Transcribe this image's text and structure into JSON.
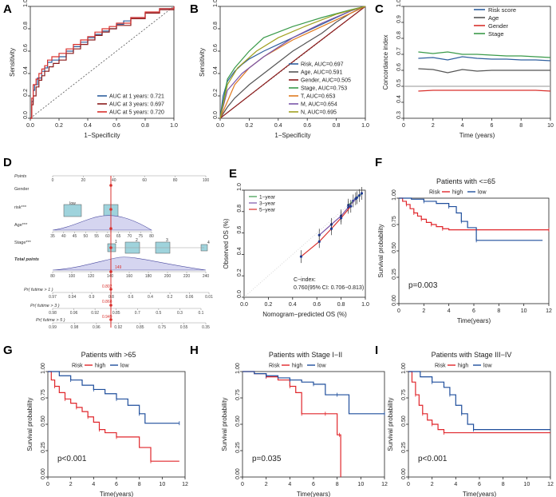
{
  "panel_letters": [
    "A",
    "B",
    "C",
    "D",
    "E",
    "F",
    "G",
    "H",
    "I"
  ],
  "colors": {
    "blue": "#2f5f9e",
    "red": "#d9302c",
    "darkred": "#8b1a1a",
    "green": "#3a9a4a",
    "gray": "#555555",
    "orange": "#e07b1f",
    "purple": "#7a55a8",
    "olive": "#a0a020",
    "navy": "#1f3a93",
    "km_red": "#e0262b",
    "km_blue": "#1f4e9c"
  },
  "chart_data": [
    {
      "panel": "A",
      "type": "line",
      "title": "",
      "xlabel": "1−Specificity",
      "ylabel": "Sensitivity",
      "xlim": [
        0,
        1
      ],
      "ylim": [
        0,
        1
      ],
      "xticks": [
        "0.0",
        "0.2",
        "0.4",
        "0.6",
        "0.8",
        "1.0"
      ],
      "yticks": [
        "0.0",
        "0.2",
        "0.4",
        "0.6",
        "0.8",
        "1.0"
      ],
      "legend": "bottom-right",
      "series": [
        {
          "name": "AUC at 1 years: 0.721",
          "color": "#2f5f9e",
          "x": [
            0,
            0.01,
            0.02,
            0.03,
            0.05,
            0.08,
            0.1,
            0.12,
            0.15,
            0.2,
            0.25,
            0.3,
            0.35,
            0.4,
            0.45,
            0.5,
            0.55,
            0.6,
            0.65,
            0.7,
            0.8,
            0.9,
            1.0
          ],
          "y": [
            0,
            0.15,
            0.25,
            0.3,
            0.36,
            0.42,
            0.45,
            0.5,
            0.52,
            0.55,
            0.6,
            0.64,
            0.68,
            0.72,
            0.75,
            0.78,
            0.8,
            0.84,
            0.87,
            0.9,
            0.94,
            0.98,
            1.0
          ]
        },
        {
          "name": "AUC at 3 years: 0.697",
          "color": "#8b1a1a",
          "x": [
            0,
            0.01,
            0.02,
            0.04,
            0.06,
            0.08,
            0.1,
            0.13,
            0.16,
            0.2,
            0.25,
            0.3,
            0.35,
            0.4,
            0.45,
            0.5,
            0.55,
            0.6,
            0.7,
            0.8,
            0.9,
            1.0
          ],
          "y": [
            0,
            0.12,
            0.2,
            0.28,
            0.34,
            0.38,
            0.42,
            0.46,
            0.49,
            0.52,
            0.58,
            0.62,
            0.66,
            0.7,
            0.74,
            0.77,
            0.8,
            0.83,
            0.89,
            0.94,
            0.97,
            1.0
          ]
        },
        {
          "name": "AUC at 5 years: 0.720",
          "color": "#d9302c",
          "x": [
            0,
            0.01,
            0.02,
            0.04,
            0.06,
            0.08,
            0.1,
            0.12,
            0.15,
            0.2,
            0.25,
            0.3,
            0.35,
            0.4,
            0.45,
            0.5,
            0.55,
            0.6,
            0.7,
            0.8,
            0.9,
            1.0
          ],
          "y": [
            0,
            0.18,
            0.3,
            0.35,
            0.4,
            0.44,
            0.47,
            0.52,
            0.55,
            0.58,
            0.62,
            0.66,
            0.7,
            0.73,
            0.77,
            0.8,
            0.82,
            0.85,
            0.9,
            0.95,
            0.98,
            1.0
          ]
        }
      ]
    },
    {
      "panel": "B",
      "type": "line",
      "title": "",
      "xlabel": "1−Specificity",
      "ylabel": "Sensitivity",
      "xlim": [
        0,
        1
      ],
      "ylim": [
        0,
        1
      ],
      "xticks": [
        "0.0",
        "0.2",
        "0.4",
        "0.6",
        "0.8",
        "1.0"
      ],
      "yticks": [
        "0.0",
        "0.2",
        "0.4",
        "0.6",
        "0.8",
        "1.0"
      ],
      "legend": "bottom-right",
      "series": [
        {
          "name": "Risk, AUC=0.697",
          "color": "#2f5f9e",
          "x": [
            0,
            0.02,
            0.05,
            0.1,
            0.15,
            0.2,
            0.3,
            0.4,
            0.5,
            0.6,
            0.7,
            0.8,
            0.9,
            1.0
          ],
          "y": [
            0,
            0.2,
            0.33,
            0.42,
            0.48,
            0.53,
            0.6,
            0.66,
            0.72,
            0.78,
            0.84,
            0.9,
            0.96,
            1.0
          ]
        },
        {
          "name": "Age, AUC=0.591",
          "color": "#555555",
          "x": [
            0,
            0.05,
            0.1,
            0.15,
            0.2,
            0.3,
            0.4,
            0.5,
            0.6,
            0.7,
            0.8,
            0.9,
            1.0
          ],
          "y": [
            0,
            0.1,
            0.18,
            0.24,
            0.3,
            0.4,
            0.5,
            0.6,
            0.68,
            0.76,
            0.86,
            0.94,
            1.0
          ]
        },
        {
          "name": "Gender, AUC=0.505",
          "color": "#8b1a1a",
          "x": [
            0,
            0.5,
            1.0
          ],
          "y": [
            0,
            0.505,
            1.0
          ]
        },
        {
          "name": "Stage, AUC=0.753",
          "color": "#3a9a4a",
          "x": [
            0,
            0.05,
            0.1,
            0.2,
            0.3,
            0.5,
            0.7,
            0.9,
            1.0
          ],
          "y": [
            0,
            0.35,
            0.45,
            0.6,
            0.72,
            0.82,
            0.9,
            0.97,
            1.0
          ]
        },
        {
          "name": "T, AUC=0.653",
          "color": "#e07b1f",
          "x": [
            0,
            0.1,
            0.2,
            0.3,
            0.5,
            0.7,
            0.9,
            1.0
          ],
          "y": [
            0,
            0.3,
            0.45,
            0.55,
            0.7,
            0.82,
            0.94,
            1.0
          ]
        },
        {
          "name": "M, AUC=0.654",
          "color": "#7a55a8",
          "x": [
            0,
            0.05,
            0.15,
            0.3,
            0.5,
            0.7,
            0.9,
            1.0
          ],
          "y": [
            0,
            0.25,
            0.4,
            0.55,
            0.72,
            0.85,
            0.96,
            1.0
          ]
        },
        {
          "name": "N, AUC=0.695",
          "color": "#a0a020",
          "x": [
            0,
            0.05,
            0.12,
            0.25,
            0.4,
            0.6,
            0.8,
            1.0
          ],
          "y": [
            0,
            0.3,
            0.45,
            0.6,
            0.72,
            0.83,
            0.93,
            1.0
          ]
        }
      ]
    },
    {
      "panel": "C",
      "type": "line",
      "title": "",
      "xlabel": "Time (years)",
      "ylabel": "Concordance index",
      "xlim": [
        0,
        10
      ],
      "ylim": [
        0.3,
        1.0
      ],
      "xticks": [
        "0",
        "2",
        "4",
        "6",
        "8",
        "10"
      ],
      "yticks": [
        "0.3",
        "0.4",
        "0.5",
        "0.6",
        "0.7",
        "0.8",
        "0.9",
        "1.0"
      ],
      "legend": "top-right",
      "refline": 0.5,
      "series": [
        {
          "name": "Risk score",
          "color": "#2f5f9e",
          "x": [
            1,
            2,
            3,
            4,
            5,
            6,
            7,
            8,
            9,
            10
          ],
          "y": [
            0.675,
            0.68,
            0.665,
            0.685,
            0.675,
            0.67,
            0.67,
            0.665,
            0.665,
            0.66
          ]
        },
        {
          "name": "Age",
          "color": "#555555",
          "x": [
            1,
            2,
            3,
            4,
            5,
            6,
            7,
            8,
            9,
            10
          ],
          "y": [
            0.61,
            0.605,
            0.585,
            0.605,
            0.595,
            0.6,
            0.6,
            0.6,
            0.6,
            0.6
          ]
        },
        {
          "name": "Gender",
          "color": "#d9302c",
          "x": [
            1,
            2,
            3,
            4,
            5,
            6,
            7,
            8,
            9,
            10
          ],
          "y": [
            0.47,
            0.475,
            0.475,
            0.475,
            0.475,
            0.475,
            0.475,
            0.475,
            0.475,
            0.47
          ]
        },
        {
          "name": "Stage",
          "color": "#3a9a4a",
          "x": [
            1,
            2,
            3,
            4,
            5,
            6,
            7,
            8,
            9,
            10
          ],
          "y": [
            0.715,
            0.705,
            0.715,
            0.7,
            0.7,
            0.695,
            0.69,
            0.69,
            0.685,
            0.68
          ]
        }
      ]
    },
    {
      "panel": "D",
      "type": "table",
      "title": "Nomogram",
      "rows": [
        "Points",
        "Gender",
        "risk***",
        "Age***",
        "Stage***",
        "Total points",
        "Pr( futime > 1 )",
        "Pr( futime > 3 )",
        "Pr( futime > 5 )"
      ],
      "points_ticks": [
        "0",
        "20",
        "40",
        "60",
        "80",
        "100"
      ],
      "risk_box_label": "low",
      "age_ticks": [
        "35",
        "40",
        "45",
        "50",
        "55",
        "60",
        "65",
        "70",
        "75",
        "80"
      ],
      "stage_labels": [
        "1",
        "2",
        "3",
        "4"
      ],
      "total_ticks": [
        "80",
        "100",
        "120",
        "140",
        "160",
        "180",
        "200",
        "220",
        "240"
      ],
      "total_marker": "149",
      "pr1_ticks": [
        "0.97",
        "0.94",
        "0.9",
        "0.8",
        "0.6",
        "0.4",
        "0.2",
        "0.06",
        "0.01"
      ],
      "pr3_ticks": [
        "0.98",
        "0.96",
        "0.92",
        "0.85",
        "0.7",
        "0.5",
        "0.3",
        "0.1"
      ],
      "pr5_ticks": [
        "0.99",
        "0.98",
        "0.96",
        "0.92",
        "0.85",
        "0.75",
        "0.55",
        "0.35"
      ],
      "pr_markers": [
        "0.802",
        "0.868",
        "0.949"
      ]
    },
    {
      "panel": "E",
      "type": "line",
      "title": "",
      "xlabel": "Nomogram−predicted OS (%)",
      "ylabel": "Observed OS (%)",
      "xlim": [
        0,
        1
      ],
      "ylim": [
        0,
        1
      ],
      "xticks": [
        "0.0",
        "0.2",
        "0.4",
        "0.6",
        "0.8",
        "1.0"
      ],
      "yticks": [
        "0.0",
        "0.2",
        "0.4",
        "0.6",
        "0.8",
        "1.0"
      ],
      "legend": "top-left",
      "annotation": [
        "C−index:",
        "0.760(95% CI: 0.706−0.813)"
      ],
      "series": [
        {
          "name": "1−year",
          "color": "#3a9a4a",
          "x": [
            0.86,
            0.9,
            0.93,
            0.95,
            0.97
          ],
          "y": [
            0.86,
            0.9,
            0.93,
            0.95,
            0.97
          ]
        },
        {
          "name": "3−year",
          "color": "#7a55a8",
          "x": [
            0.62,
            0.72,
            0.8,
            0.86,
            0.92
          ],
          "y": [
            0.58,
            0.68,
            0.76,
            0.84,
            0.92
          ]
        },
        {
          "name": "5−year",
          "color": "#d9302c",
          "x": [
            0.47,
            0.62,
            0.72,
            0.8,
            0.88
          ],
          "y": [
            0.38,
            0.52,
            0.64,
            0.74,
            0.85
          ]
        }
      ]
    },
    {
      "panel": "F",
      "type": "line",
      "title": "Patients with <=65",
      "xlabel": "Time(years)",
      "ylabel": "Survival probability",
      "xlim": [
        0,
        12
      ],
      "ylim": [
        0,
        1
      ],
      "xticks": [
        "0",
        "2",
        "4",
        "6",
        "8",
        "10",
        "12"
      ],
      "yticks": [
        "0.00",
        "0.25",
        "0.50",
        "0.75",
        "1.00"
      ],
      "legend_title": "Risk",
      "legend": "top",
      "pvalue": "p=0.003",
      "series": [
        {
          "name": "high",
          "color": "#e0262b",
          "x": [
            0,
            0.3,
            0.6,
            0.9,
            1.2,
            1.5,
            1.8,
            2.2,
            2.6,
            3.0,
            3.5,
            4.0,
            12
          ],
          "y": [
            1,
            0.97,
            0.94,
            0.9,
            0.86,
            0.83,
            0.8,
            0.77,
            0.75,
            0.73,
            0.71,
            0.7,
            0.7
          ]
        },
        {
          "name": "low",
          "color": "#1f4e9c",
          "x": [
            0,
            1,
            2,
            3,
            4,
            4.6,
            5,
            5.5,
            6.2,
            11.5
          ],
          "y": [
            1,
            0.99,
            0.97,
            0.95,
            0.92,
            0.86,
            0.78,
            0.72,
            0.6,
            0.6
          ]
        }
      ]
    },
    {
      "panel": "G",
      "type": "line",
      "title": "Patients with >65",
      "xlabel": "Time(years)",
      "ylabel": "Survival probability",
      "xlim": [
        0,
        12
      ],
      "ylim": [
        0,
        1
      ],
      "xticks": [
        "0",
        "2",
        "4",
        "6",
        "8",
        "10",
        "12"
      ],
      "yticks": [
        "0.00",
        "0.25",
        "0.50",
        "0.75",
        "1.00"
      ],
      "legend_title": "Risk",
      "legend": "top",
      "pvalue": "p<0.001",
      "series": [
        {
          "name": "high",
          "color": "#e0262b",
          "x": [
            0,
            0.3,
            0.6,
            1.0,
            1.5,
            2.0,
            2.5,
            3.0,
            3.5,
            4.0,
            4.5,
            5.0,
            6.0,
            8.0,
            9.0,
            11.5
          ],
          "y": [
            1,
            0.92,
            0.86,
            0.8,
            0.74,
            0.7,
            0.66,
            0.62,
            0.57,
            0.52,
            0.45,
            0.42,
            0.38,
            0.28,
            0.15,
            0.15
          ]
        },
        {
          "name": "low",
          "color": "#1f4e9c",
          "x": [
            0,
            1,
            2,
            3,
            4,
            5,
            6,
            7,
            8,
            8.5,
            11.5
          ],
          "y": [
            1,
            0.96,
            0.92,
            0.87,
            0.83,
            0.79,
            0.74,
            0.68,
            0.6,
            0.51,
            0.51
          ]
        }
      ]
    },
    {
      "panel": "H",
      "type": "line",
      "title": "Patients with Stage I−II",
      "xlabel": "Time(years)",
      "ylabel": "Survival probability",
      "xlim": [
        0,
        12
      ],
      "ylim": [
        0,
        1
      ],
      "xticks": [
        "0",
        "2",
        "4",
        "6",
        "8",
        "10",
        "12"
      ],
      "yticks": [
        "0.00",
        "0.25",
        "0.50",
        "0.75",
        "1.00"
      ],
      "legend_title": "Risk",
      "legend": "top",
      "pvalue": "p=0.035",
      "series": [
        {
          "name": "high",
          "color": "#e0262b",
          "x": [
            0,
            1,
            2,
            3,
            4,
            4.5,
            5,
            6,
            7,
            8,
            8.2,
            8.3
          ],
          "y": [
            1,
            0.98,
            0.95,
            0.92,
            0.86,
            0.8,
            0.6,
            0.6,
            0.6,
            0.4,
            0.4,
            0.0
          ]
        },
        {
          "name": "low",
          "color": "#1f4e9c",
          "x": [
            0,
            1,
            2,
            3,
            4,
            5,
            6,
            7,
            8,
            9,
            12
          ],
          "y": [
            1,
            0.98,
            0.96,
            0.94,
            0.92,
            0.9,
            0.88,
            0.78,
            0.78,
            0.6,
            0.6
          ]
        }
      ]
    },
    {
      "panel": "I",
      "type": "line",
      "title": "Patients with Stage III−IV",
      "xlabel": "Time(years)",
      "ylabel": "Survival probability",
      "xlim": [
        0,
        12
      ],
      "ylim": [
        0,
        1
      ],
      "xticks": [
        "0",
        "2",
        "4",
        "6",
        "8",
        "10",
        "12"
      ],
      "yticks": [
        "0.00",
        "0.25",
        "0.50",
        "0.75",
        "1.00"
      ],
      "legend_title": "Risk",
      "legend": "top",
      "pvalue": "p<0.001",
      "series": [
        {
          "name": "high",
          "color": "#e0262b",
          "x": [
            0,
            0.3,
            0.6,
            0.9,
            1.2,
            1.6,
            2.0,
            2.5,
            3.0,
            12
          ],
          "y": [
            1,
            0.9,
            0.78,
            0.68,
            0.6,
            0.54,
            0.5,
            0.45,
            0.42,
            0.42
          ]
        },
        {
          "name": "low",
          "color": "#1f4e9c",
          "x": [
            0,
            1,
            2,
            3,
            3.5,
            4,
            4.5,
            5,
            5.5,
            12
          ],
          "y": [
            1,
            0.95,
            0.9,
            0.85,
            0.78,
            0.68,
            0.6,
            0.5,
            0.45,
            0.45
          ]
        }
      ]
    }
  ]
}
